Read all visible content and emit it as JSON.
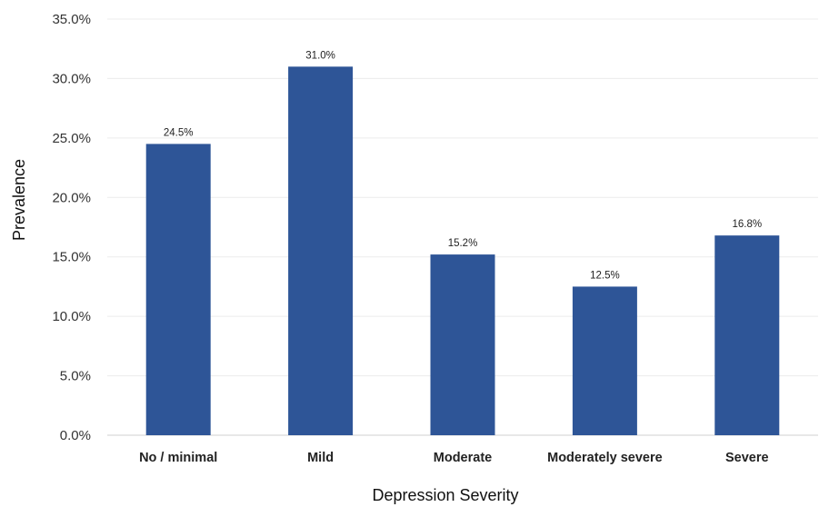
{
  "chart_data": {
    "type": "bar",
    "categories": [
      "No / minimal",
      "Mild",
      "Moderate",
      "Moderately severe",
      "Severe"
    ],
    "values": [
      24.5,
      31.0,
      15.2,
      12.5,
      16.8
    ],
    "data_labels": [
      "24.5%",
      "31.0%",
      "15.2%",
      "12.5%",
      "16.8%"
    ],
    "title": "",
    "xlabel": "Depression Severity",
    "ylabel": "Prevalence",
    "ylim": [
      0,
      35
    ],
    "yticks": [
      "0.0%",
      "5.0%",
      "10.0%",
      "15.0%",
      "20.0%",
      "25.0%",
      "30.0%",
      "35.0%"
    ],
    "grid": true,
    "legend": "none",
    "bar_color": "#2E5597"
  }
}
